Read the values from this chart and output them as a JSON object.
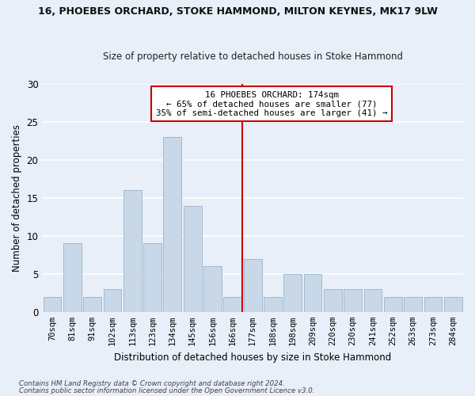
{
  "title1": "16, PHOEBES ORCHARD, STOKE HAMMOND, MILTON KEYNES, MK17 9LW",
  "title2": "Size of property relative to detached houses in Stoke Hammond",
  "xlabel": "Distribution of detached houses by size in Stoke Hammond",
  "ylabel": "Number of detached properties",
  "categories": [
    "70sqm",
    "81sqm",
    "91sqm",
    "102sqm",
    "113sqm",
    "123sqm",
    "134sqm",
    "145sqm",
    "156sqm",
    "166sqm",
    "177sqm",
    "188sqm",
    "198sqm",
    "209sqm",
    "220sqm",
    "230sqm",
    "241sqm",
    "252sqm",
    "263sqm",
    "273sqm",
    "284sqm"
  ],
  "values": [
    2,
    9,
    2,
    3,
    16,
    9,
    23,
    14,
    6,
    2,
    7,
    2,
    5,
    5,
    3,
    3,
    3,
    2,
    2,
    2,
    2
  ],
  "bar_color": "#c8d8e8",
  "bar_edge_color": "#9ab4c8",
  "background_color": "#e8eff8",
  "grid_color": "#ffffff",
  "annotation_text": "16 PHOEBES ORCHARD: 174sqm\n← 65% of detached houses are smaller (77)\n35% of semi-detached houses are larger (41) →",
  "vline_x_index": 10,
  "vline_color": "#cc0000",
  "ylim": [
    0,
    30
  ],
  "footnote1": "Contains HM Land Registry data © Crown copyright and database right 2024.",
  "footnote2": "Contains public sector information licensed under the Open Government Licence v3.0."
}
